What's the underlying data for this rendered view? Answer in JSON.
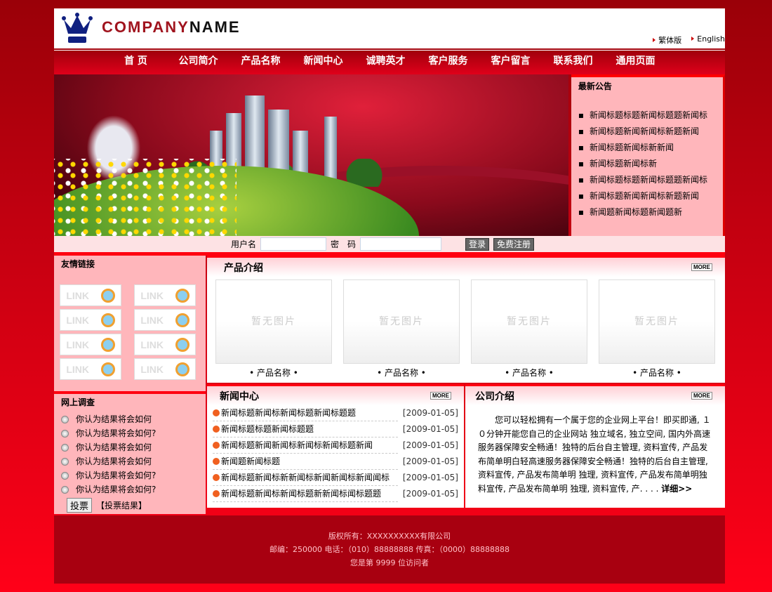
{
  "header": {
    "logo_a": "COMPANY",
    "logo_b": "NAME",
    "lang": [
      "繁体版",
      "English"
    ]
  },
  "nav": [
    "首 页",
    "公司简介",
    "产品名称",
    "新闻中心",
    "诚聘英才",
    "客户服务",
    "客户留言",
    "联系我们",
    "通用页面"
  ],
  "notice": {
    "title": "最新公告",
    "items": [
      "新闻标题标题新闻标题题新闻标",
      "新闻标题新闻新闻标新题新闻",
      "新闻标题新闻标新新闻",
      "新闻标题新闻标新",
      "新闻标题标题新闻标题题新闻标",
      "新闻标题新闻新闻标新题新闻",
      "新闻题新闻标题新闻题新"
    ]
  },
  "login": {
    "user_label": "用户名",
    "pass_label": "密　码",
    "login_btn": "登录",
    "register_btn": "免费注册"
  },
  "links": {
    "title": "友情链接",
    "items": [
      "LINK",
      "LINK",
      "LINK",
      "LINK",
      "LINK",
      "LINK",
      "LINK",
      "LINK"
    ]
  },
  "poll": {
    "title": "网上调查",
    "options": [
      "你认为结果将会如何",
      "你认为结果将会如何?",
      "你认为结果将会如何",
      "你认为结果将会如何",
      "你认为结果将会如何?",
      "你认为结果将会如何?"
    ],
    "vote_btn": "投票",
    "results": "【投票结果】"
  },
  "products": {
    "title": "产品介绍",
    "more": "MORE",
    "no_image": "暂无图片",
    "items": [
      "• 产品名称 •",
      "• 产品名称 •",
      "• 产品名称 •",
      "• 产品名称 •"
    ]
  },
  "news": {
    "title": "新闻中心",
    "more": "MORE",
    "items": [
      {
        "t": "新闻标题新闻标新闻标题新闻标题题",
        "d": "[2009-01-05]"
      },
      {
        "t": "新闻标题标题新闻标题题",
        "d": "[2009-01-05]"
      },
      {
        "t": "新闻标题新闻新闻标新闻标新闻标题新闻",
        "d": "[2009-01-05]"
      },
      {
        "t": "新闻题新闻标题",
        "d": "[2009-01-05]"
      },
      {
        "t": "新闻标题新闻标新新闻标新闻新闻标新闻闻标",
        "d": "[2009-01-05]"
      },
      {
        "t": "新闻标题新闻标新闻标题新新闻标闻标题题",
        "d": "[2009-01-05]"
      }
    ]
  },
  "intro": {
    "title": "公司介绍",
    "more": "MORE",
    "text": "您可以轻松拥有一个属于您的企业网上平台！即买即通, １０分钟开能您自己的企业网站 独立域名, 独立空间, 国内外高速服务器保障安全畅通！独特的后台自主管理, 资料宣传, 产品发布简单明白轻高速服务器保障安全畅通！独特的后台自主管理, 资料宣传, 产品发布简单明 独理, 资料宣传, 产品发布简单明独料宣传, 产品发布简单明 独理, 资料宣传, 产. . . . ",
    "detail": "详细>>"
  },
  "footer": {
    "line1": "版权所有：XXXXXXXXXX有限公司",
    "line2": "邮编：250000 电话：（010）88888888 传真：（0000）88888888",
    "line3": "您是第 9999 位访问者"
  }
}
